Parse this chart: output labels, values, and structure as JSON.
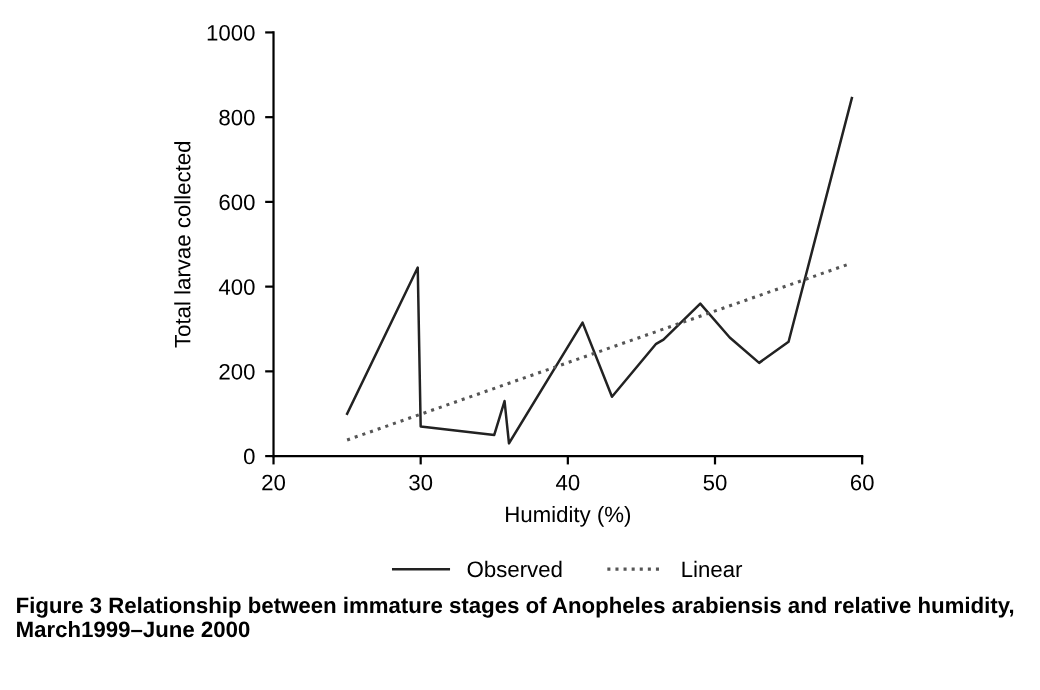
{
  "chart_data": {
    "type": "line",
    "xlabel": "Humidity (%)",
    "ylabel": "Total larvae collected",
    "xlim": [
      20,
      60
    ],
    "xticks": [
      20,
      30,
      40,
      50,
      60
    ],
    "ylim": [
      0,
      1000
    ],
    "yticks": [
      0,
      200,
      400,
      600,
      800,
      1000
    ],
    "grid": false,
    "legend": "bottom",
    "marker": "none",
    "series": [
      {
        "name": "Observed",
        "color": "#222222",
        "line_style": "solid",
        "x": [
          25,
          29.8,
          30,
          35,
          35.7,
          36,
          41,
          43,
          46,
          46.5,
          49,
          51,
          53,
          55,
          59.3
        ],
        "values": [
          100,
          445,
          70,
          50,
          130,
          30,
          315,
          140,
          265,
          275,
          360,
          280,
          220,
          270,
          845
        ]
      },
      {
        "name": "Linear",
        "color": "#555555",
        "line_style": "dotted",
        "x": [
          25,
          59
        ],
        "values": [
          38,
          452
        ]
      }
    ],
    "annotations": [
      "Figure 3 Relationship between immature stages of Anopheles arabiensis and relative humidity, March1999–June 2000"
    ]
  }
}
